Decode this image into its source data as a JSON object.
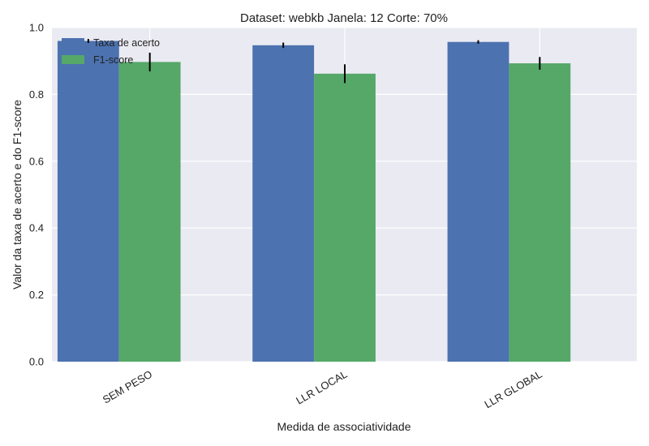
{
  "chart_data": {
    "type": "bar",
    "title": "Dataset: webkb Janela: 12 Corte: 70%",
    "xlabel": "Medida de associatividade",
    "ylabel": "Valor da taxa de acerto e do F1-score",
    "categories": [
      "SEM PESO",
      "LLR LOCAL",
      "LLR GLOBAL"
    ],
    "series": [
      {
        "name": "Taxa de acerto",
        "color": "#4c72b0",
        "values": [
          0.96,
          0.947,
          0.957
        ],
        "errors": [
          0.006,
          0.008,
          0.005
        ]
      },
      {
        "name": "F1-score",
        "color": "#55a868",
        "values": [
          0.897,
          0.862,
          0.893
        ],
        "errors": [
          0.028,
          0.028,
          0.019
        ]
      }
    ],
    "ylim": [
      0,
      1.0
    ],
    "yticks": [
      "0.0",
      "0.2",
      "0.4",
      "0.6",
      "0.8",
      "1.0"
    ],
    "grid": true,
    "legend_position": "top-left",
    "background": "#eaeaf2"
  }
}
